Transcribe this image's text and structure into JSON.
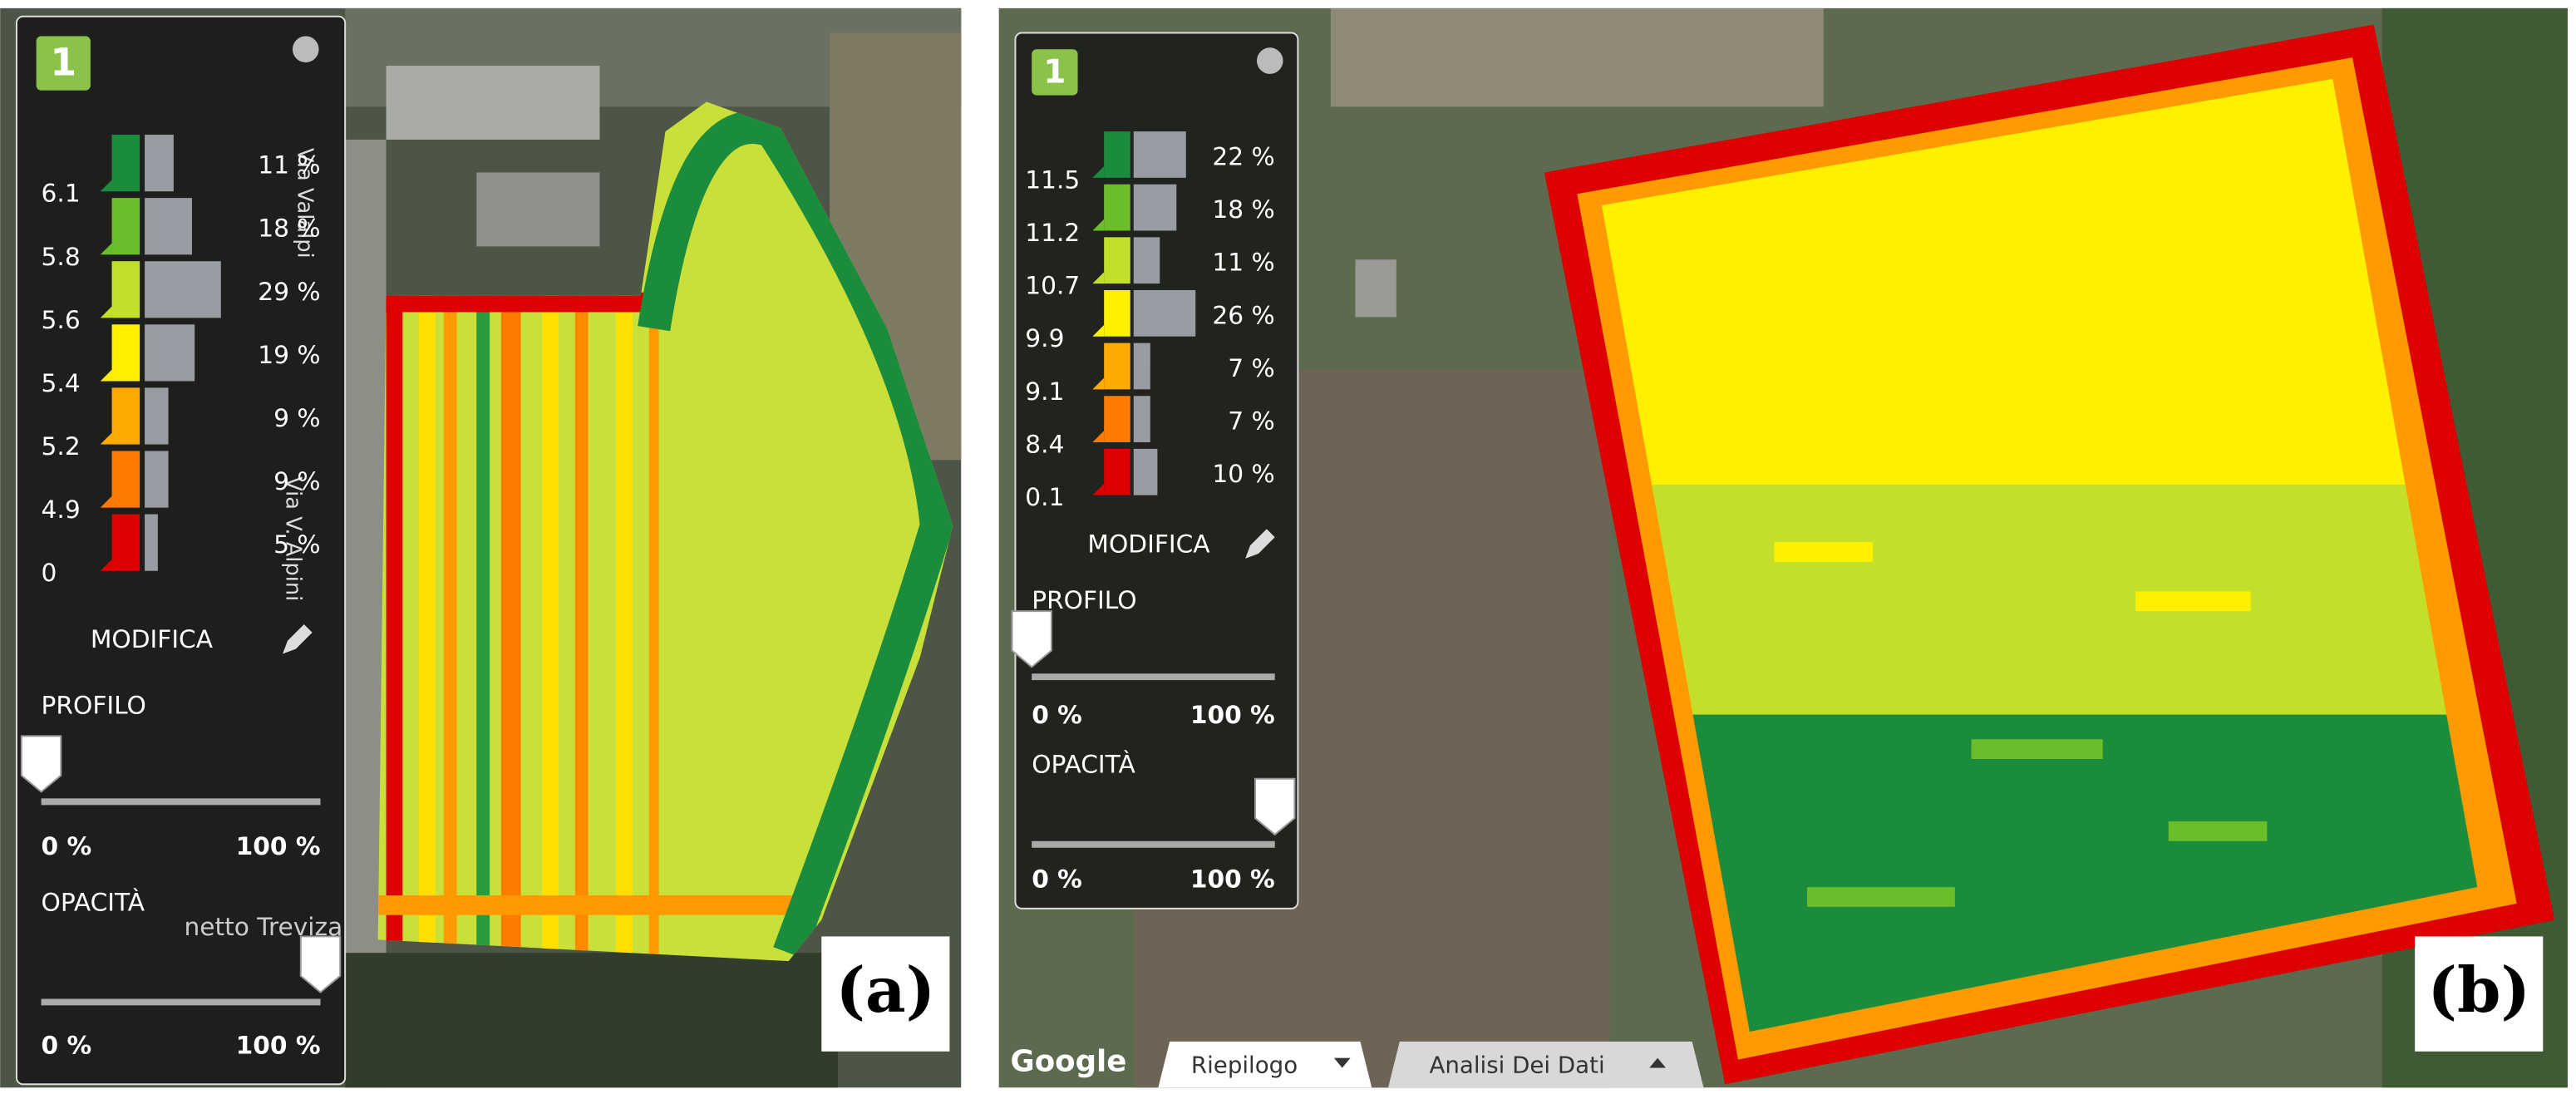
{
  "panels": [
    {
      "label": "(a)",
      "badge": "1",
      "classes": [
        {
          "threshold": "6.1",
          "percent": 11,
          "percent_label": "11 %",
          "color": "#1a8c3c"
        },
        {
          "threshold": "5.8",
          "percent": 18,
          "percent_label": "18 %",
          "color": "#6cbd2a"
        },
        {
          "threshold": "5.6",
          "percent": 29,
          "percent_label": "29 %",
          "color": "#c4df2a"
        },
        {
          "threshold": "5.4",
          "percent": 19,
          "percent_label": "19 %",
          "color": "#fff000"
        },
        {
          "threshold": "5.2",
          "percent": 9,
          "percent_label": "9 %",
          "color": "#ffaa00"
        },
        {
          "threshold": "4.9",
          "percent": 9,
          "percent_label": "9 %",
          "color": "#ff7a00"
        },
        {
          "threshold": "0",
          "percent": 5,
          "percent_label": "5 %",
          "color": "#dd0000"
        }
      ],
      "edit": "MODIFICA",
      "profile": {
        "title": "PROFILO",
        "min": "0 %",
        "max": "100 %"
      },
      "opacity": {
        "title": "OPACITÀ",
        "min": "0 %",
        "max": "100 %"
      },
      "map_labels": [
        "Via Valalpi",
        "Via V. Alpini",
        "netto Treviza"
      ]
    },
    {
      "label": "(b)",
      "badge": "1",
      "classes": [
        {
          "threshold": "11.5",
          "percent": 22,
          "percent_label": "22 %",
          "color": "#1a8c3c"
        },
        {
          "threshold": "11.2",
          "percent": 18,
          "percent_label": "18 %",
          "color": "#6cbd2a"
        },
        {
          "threshold": "10.7",
          "percent": 11,
          "percent_label": "11 %",
          "color": "#c4df2a"
        },
        {
          "threshold": "9.9",
          "percent": 26,
          "percent_label": "26 %",
          "color": "#fff000"
        },
        {
          "threshold": "9.1",
          "percent": 7,
          "percent_label": "7 %",
          "color": "#ffaa00"
        },
        {
          "threshold": "8.4",
          "percent": 7,
          "percent_label": "7 %",
          "color": "#ff7a00"
        },
        {
          "threshold": "0.1",
          "percent": 10,
          "percent_label": "10 %",
          "color": "#dd0000"
        }
      ],
      "edit": "MODIFICA",
      "profile": {
        "title": "PROFILO",
        "min": "0 %",
        "max": "100 %"
      },
      "opacity": {
        "title": "OPACITÀ",
        "min": "0 %",
        "max": "100 %"
      },
      "google": "Google",
      "tabs": [
        "Riepilogo",
        "Analisi Dei Dati"
      ]
    }
  ]
}
